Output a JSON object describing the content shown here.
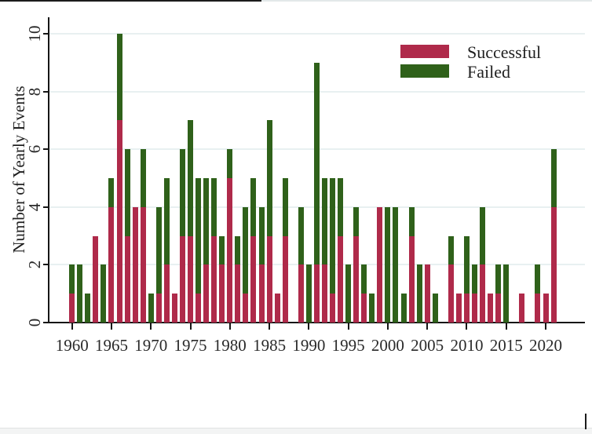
{
  "figure": {
    "y_axis_title": "Number of Yearly Events",
    "y_tick_labels": [
      "0",
      "2",
      "4",
      "6",
      "8",
      "10"
    ],
    "x_tick_labels": [
      "1960",
      "1965",
      "1970",
      "1975",
      "1980",
      "1985",
      "1990",
      "1995",
      "2000",
      "2005",
      "2010",
      "2015",
      "2020"
    ],
    "legend": {
      "items": [
        {
          "label": "Successful",
          "color": "#af2a4a"
        },
        {
          "label": "Failed",
          "color": "#2f611a"
        }
      ]
    },
    "colors": {
      "successful": "#af2a4a",
      "failed": "#2f611a",
      "gridline": "#e8f0f1",
      "axis": "#161616"
    }
  },
  "chart_data": {
    "type": "bar",
    "stacked": true,
    "title": "",
    "xlabel": "",
    "ylabel": "Number of Yearly Events",
    "ylim": [
      0,
      10
    ],
    "yticks": [
      0,
      2,
      4,
      6,
      8,
      10
    ],
    "xticks": [
      1960,
      1965,
      1970,
      1975,
      1980,
      1985,
      1990,
      1995,
      2000,
      2005,
      2010,
      2015,
      2020
    ],
    "grid": "horizontal",
    "legend_position": "top-right",
    "x": [
      1960,
      1961,
      1962,
      1963,
      1964,
      1965,
      1966,
      1967,
      1968,
      1969,
      1970,
      1971,
      1972,
      1973,
      1974,
      1975,
      1976,
      1977,
      1978,
      1979,
      1980,
      1981,
      1982,
      1983,
      1984,
      1985,
      1986,
      1987,
      1988,
      1989,
      1990,
      1991,
      1992,
      1993,
      1994,
      1995,
      1996,
      1997,
      1998,
      1999,
      2000,
      2001,
      2002,
      2003,
      2004,
      2005,
      2006,
      2007,
      2008,
      2009,
      2010,
      2011,
      2012,
      2013,
      2014,
      2015,
      2016,
      2017,
      2018,
      2019,
      2020,
      2021
    ],
    "series": [
      {
        "name": "Successful",
        "color": "#af2a4a",
        "values": [
          1,
          0,
          0,
          3,
          0,
          4,
          7,
          3,
          4,
          4,
          0,
          1,
          2,
          1,
          3,
          3,
          1,
          2,
          3,
          2,
          5,
          2,
          1,
          3,
          2,
          3,
          1,
          3,
          0,
          2,
          0,
          2,
          2,
          1,
          3,
          0,
          3,
          1,
          0,
          4,
          0,
          0,
          0,
          3,
          0,
          2,
          0,
          0,
          2,
          1,
          1,
          1,
          2,
          1,
          1,
          0,
          0,
          1,
          0,
          1,
          1,
          4
        ]
      },
      {
        "name": "Failed",
        "color": "#2f611a",
        "values": [
          1,
          2,
          1,
          0,
          2,
          1,
          3,
          3,
          0,
          2,
          1,
          3,
          3,
          0,
          3,
          4,
          4,
          3,
          2,
          1,
          1,
          1,
          3,
          2,
          2,
          4,
          0,
          2,
          0,
          2,
          2,
          7,
          3,
          4,
          2,
          2,
          1,
          1,
          1,
          0,
          4,
          4,
          1,
          1,
          2,
          0,
          1,
          0,
          1,
          0,
          2,
          1,
          2,
          0,
          1,
          2,
          0,
          0,
          0,
          1,
          0,
          2
        ]
      }
    ]
  }
}
